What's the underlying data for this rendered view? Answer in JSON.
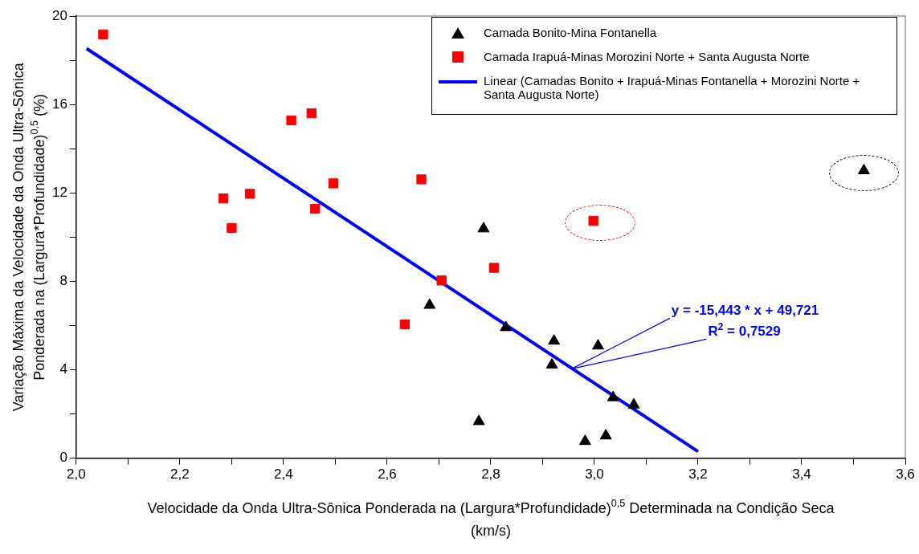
{
  "chart_data": {
    "type": "scatter",
    "xlabel": "Velocidade da Onda Ultra-Sônica Ponderada na (Largura*Profundidade)$^{0,5}$ Determinada na Condição Seca (km/s)",
    "ylabel": "Variação Máxima da Velocidade da Onda Ultra-Sônica Ponderada na (Largura*Profundidade)$^{0,5}$ (%)",
    "xlim": [
      2.0,
      3.6
    ],
    "xticks": [
      {
        "value": 2.0,
        "label": "2,0"
      },
      {
        "value": 2.1,
        "label": null
      },
      {
        "value": 2.2,
        "label": "2,2"
      },
      {
        "value": 2.3,
        "label": null
      },
      {
        "value": 2.4,
        "label": "2,4"
      },
      {
        "value": 2.5,
        "label": null
      },
      {
        "value": 2.6,
        "label": "2,6"
      },
      {
        "value": 2.7,
        "label": null
      },
      {
        "value": 2.8,
        "label": "2,8"
      },
      {
        "value": 2.9,
        "label": null
      },
      {
        "value": 3.0,
        "label": "3,0"
      },
      {
        "value": 3.1,
        "label": null
      },
      {
        "value": 3.2,
        "label": "3,2"
      },
      {
        "value": 3.3,
        "label": null
      },
      {
        "value": 3.4,
        "label": "3,4"
      },
      {
        "value": 3.5,
        "label": null
      },
      {
        "value": 3.6,
        "label": "3,6"
      }
    ],
    "ylim": [
      0,
      20
    ],
    "yticks": [
      0,
      {
        "value": 2,
        "label": null
      },
      4,
      {
        "value": 6,
        "label": null
      },
      8,
      {
        "value": 10,
        "label": null
      },
      12,
      {
        "value": 14,
        "label": null
      },
      16,
      {
        "value": 18,
        "label": null
      },
      20
    ],
    "grid": false,
    "legend": "top right",
    "series": [
      {
        "name": "Camada Bonito-Mina Fontanella",
        "color": "#000000",
        "marker": "triangle",
        "x": [
          2.682,
          2.786,
          2.829,
          2.777,
          2.922,
          2.918,
          3.007,
          2.982,
          3.022,
          3.036,
          3.076,
          3.52
        ],
        "values": [
          6.92,
          10.38,
          5.91,
          1.66,
          5.3,
          4.22,
          5.08,
          0.76,
          1.01,
          2.74,
          2.41,
          13.01
        ]
      },
      {
        "name": "Camada Irapuá-Minas Morozini Norte + Santa Augusta Norte",
        "color": "#ff0000",
        "marker": "square",
        "x": [
          2.052,
          2.284,
          2.3,
          2.335,
          2.415,
          2.454,
          2.461,
          2.496,
          2.634,
          2.666,
          2.705,
          2.806,
          2.998
        ],
        "values": [
          19.17,
          11.75,
          10.41,
          11.96,
          15.28,
          15.6,
          11.28,
          12.43,
          6.05,
          12.61,
          8.04,
          8.61,
          10.74
        ]
      },
      {
        "name": "Linear (Camadas Bonito + Irapuá-Minas Fontanella + Morozini Norte + Santa Augusta Norte)",
        "type": "line",
        "color": "#0000ff",
        "marker": "none",
        "x": [
          2.02,
          3.2
        ],
        "values": [
          18.53,
          0.3
        ]
      }
    ],
    "annotations": [
      {
        "text": "y = -15,443 * x + 49,721",
        "x": 2.956,
        "y": 4.04
      },
      {
        "text": "R$^{2}$ = 0,7529",
        "x": 2.956,
        "y": 4.04
      }
    ]
  }
}
